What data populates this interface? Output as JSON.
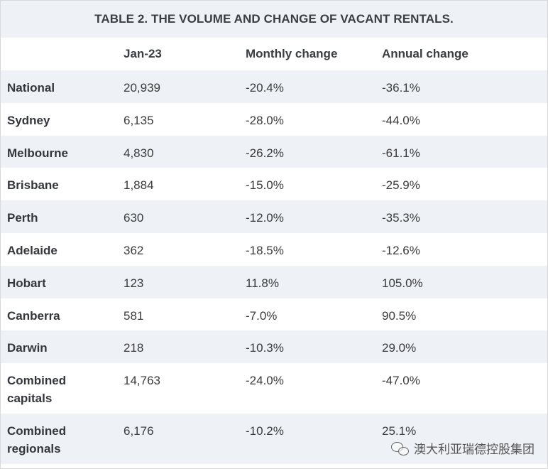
{
  "title": "TABLE 2. THE VOLUME AND CHANGE OF VACANT RENTALS.",
  "headers": [
    "",
    "Jan-23",
    "Monthly change",
    "Annual change"
  ],
  "rows": [
    {
      "name": "National",
      "jan23": "20,939",
      "monthly": "-20.4%",
      "annual": "-36.1%"
    },
    {
      "name": "Sydney",
      "jan23": "6,135",
      "monthly": "-28.0%",
      "annual": "-44.0%"
    },
    {
      "name": "Melbourne",
      "jan23": "4,830",
      "monthly": "-26.2%",
      "annual": "-61.1%"
    },
    {
      "name": "Brisbane",
      "jan23": "1,884",
      "monthly": "-15.0%",
      "annual": "-25.9%"
    },
    {
      "name": "Perth",
      "jan23": "630",
      "monthly": "-12.0%",
      "annual": "-35.3%"
    },
    {
      "name": "Adelaide",
      "jan23": "362",
      "monthly": "-18.5%",
      "annual": "-12.6%"
    },
    {
      "name": "Hobart",
      "jan23": "123",
      "monthly": "11.8%",
      "annual": "105.0%"
    },
    {
      "name": "Canberra",
      "jan23": "581",
      "monthly": "-7.0%",
      "annual": "90.5%"
    },
    {
      "name": "Darwin",
      "jan23": "218",
      "monthly": "-10.3%",
      "annual": "29.0%"
    },
    {
      "name": "Combined capitals",
      "jan23": "14,763",
      "monthly": "-24.0%",
      "annual": "-47.0%"
    },
    {
      "name": "Combined regionals",
      "jan23": "6,176",
      "monthly": "-10.2%",
      "annual": "25.1%"
    }
  ],
  "watermark": {
    "icon": "wechat-icon",
    "text": "澳大利亚瑞德控股集团"
  }
}
